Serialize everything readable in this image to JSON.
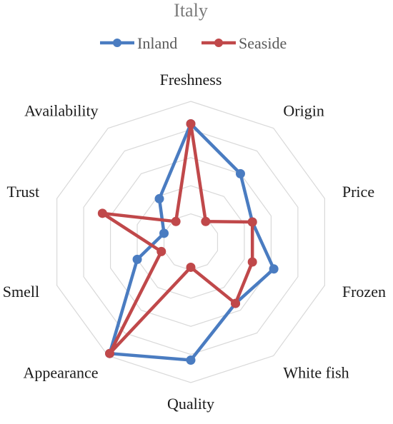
{
  "chart_data": {
    "type": "radar",
    "title": "Italy",
    "axes": [
      "Freshness",
      "Origin",
      "Price",
      "Frozen",
      "White fish",
      "Quality",
      "Appearance",
      "Smell",
      "Trust",
      "Availability"
    ],
    "rlim": [
      0,
      5
    ],
    "rings": 5,
    "grid": true,
    "legend_position": "top",
    "series": [
      {
        "name": "Inland",
        "color": "#4a7cc1",
        "values": [
          4.2,
          3.0,
          2.3,
          3.1,
          2.7,
          4.2,
          4.9,
          2.0,
          1.0,
          1.9
        ]
      },
      {
        "name": "Seaside",
        "color": "#c0484a",
        "values": [
          4.2,
          0.9,
          2.3,
          2.3,
          2.7,
          0.9,
          4.9,
          1.1,
          3.3,
          0.9
        ]
      }
    ]
  }
}
